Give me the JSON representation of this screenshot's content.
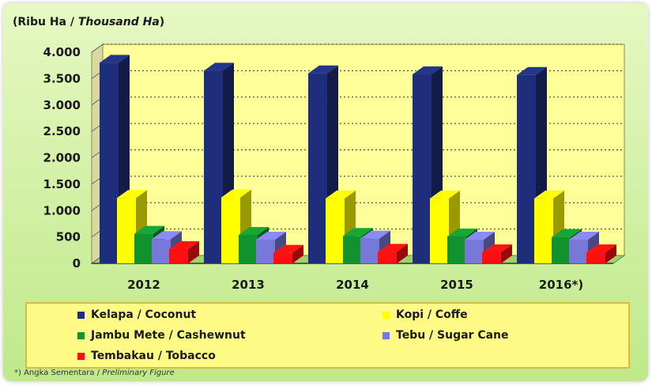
{
  "chart_data": {
    "type": "bar",
    "subtype": "3d-clustered-column",
    "unit_label_plain": "(Ribu Ha / ",
    "unit_label_italic": "Thousand Ha",
    "unit_label_end": ")",
    "categories": [
      "2012",
      "2013",
      "2014",
      "2015",
      "2016*)"
    ],
    "ylim": [
      0,
      4000
    ],
    "yticks": [
      0,
      500,
      1000,
      1500,
      2000,
      2500,
      3000,
      3500,
      4000
    ],
    "ytick_labels": [
      "0",
      "500",
      "1.000",
      "1.500",
      "2.000",
      "2.500",
      "3.000",
      "3.500",
      "4.000"
    ],
    "grid": true,
    "legend_position": "bottom",
    "series": [
      {
        "name": "Kelapa / Coconut",
        "color": "#1f2e7a",
        "values": [
          3800,
          3650,
          3600,
          3580,
          3570
        ]
      },
      {
        "name": "Kopi / Coffe",
        "color": "#ffff00",
        "values": [
          1240,
          1250,
          1230,
          1230,
          1230
        ]
      },
      {
        "name": "Jambu Mete / Cashewnut",
        "color": "#12922f",
        "values": [
          560,
          540,
          520,
          510,
          500
        ]
      },
      {
        "name": "Tebu / Sugar Cane",
        "color": "#7878d8",
        "values": [
          460,
          450,
          470,
          450,
          450
        ]
      },
      {
        "name": "Tembakau / Tobacco",
        "color": "#ff1010",
        "values": [
          270,
          200,
          220,
          210,
          210
        ]
      }
    ]
  },
  "footnote": {
    "text": "*) Angka Sementara /",
    "italic": "Preliminary Figure"
  }
}
